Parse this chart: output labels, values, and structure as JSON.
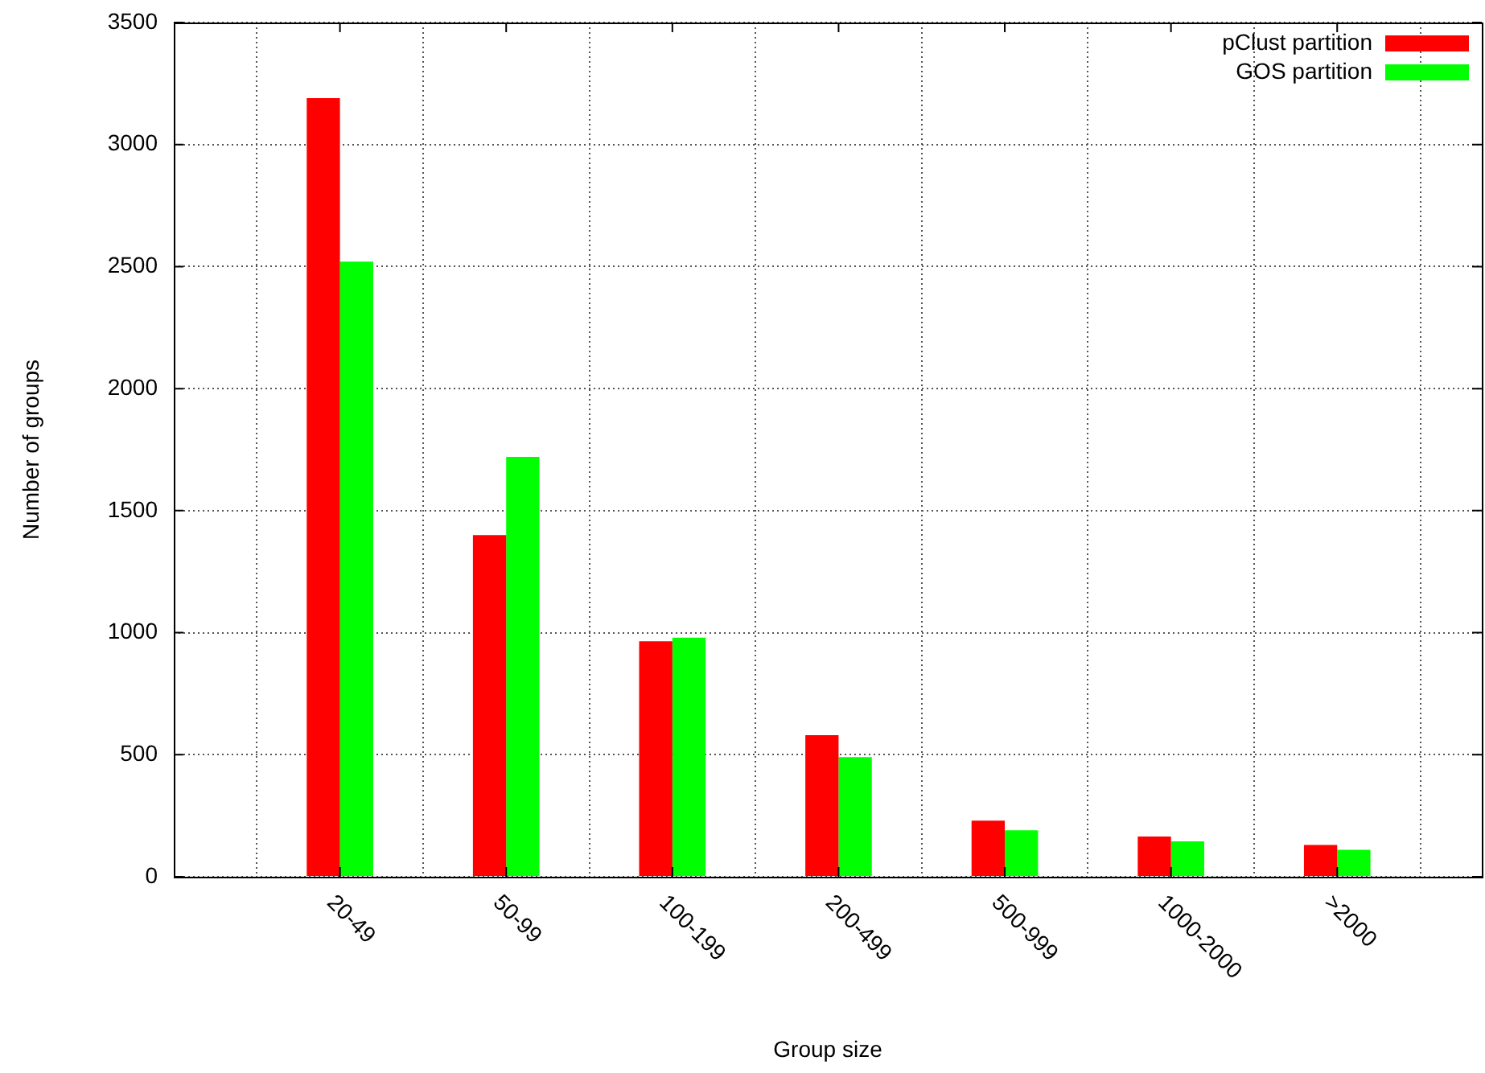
{
  "chart_data": {
    "type": "bar",
    "xlabel": "Group size",
    "ylabel": "Number of groups",
    "categories": [
      "20-49",
      "50-99",
      "100-199",
      "200-499",
      "500-999",
      "1000-2000",
      ">2000"
    ],
    "series": [
      {
        "name": "pClust partition",
        "color": "#ff0000",
        "values": [
          3190,
          1400,
          965,
          580,
          230,
          165,
          130
        ]
      },
      {
        "name": "GOS partition",
        "color": "#00ff00",
        "values": [
          2520,
          1720,
          980,
          490,
          190,
          145,
          110
        ]
      }
    ],
    "ylim": [
      0,
      3500
    ],
    "yticks": [
      0,
      500,
      1000,
      1500,
      2000,
      2500,
      3000,
      3500
    ],
    "grid": true,
    "legend": "top right"
  }
}
